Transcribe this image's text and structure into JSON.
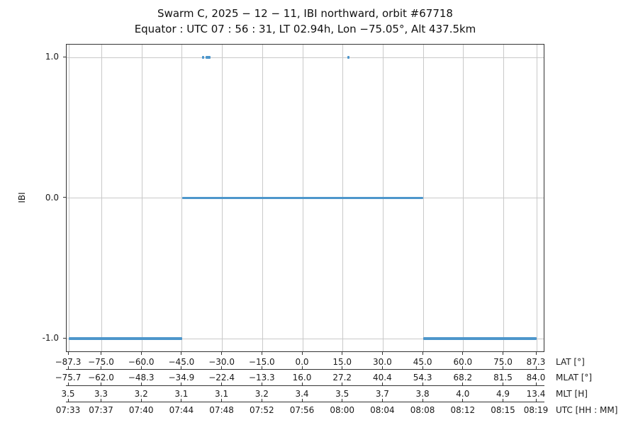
{
  "chart_data": {
    "type": "line",
    "title": "Swarm C,  2025 − 12 − 11,  IBI northward,  orbit #67718",
    "subtitle": "Equator :  UTC 07 : 56 : 31,  LT 02.94h,  Lon −75.05°,  Alt 437.5km",
    "ylabel": "IBI",
    "ylim": [
      -1.1,
      1.1
    ],
    "grid": true,
    "yticks": [
      {
        "value": 1.0,
        "label": "1.0"
      },
      {
        "value": 0.0,
        "label": "0.0"
      },
      {
        "value": -1.0,
        "label": "-1.0"
      }
    ],
    "x_tick_lats": [
      -87.3,
      -75.0,
      -60.0,
      -45.0,
      -30.0,
      -15.0,
      0.0,
      15.0,
      30.0,
      45.0,
      60.0,
      75.0,
      87.3
    ],
    "x_range_lat": [
      -87.3,
      87.3
    ],
    "axis_rows": [
      {
        "label": "LAT [°]",
        "values": [
          "−87.3",
          "−75.0",
          "−60.0",
          "−45.0",
          "−30.0",
          "−15.0",
          "0.0",
          "15.0",
          "30.0",
          "45.0",
          "60.0",
          "75.0",
          "87.3"
        ]
      },
      {
        "label": "MLAT [°]",
        "values": [
          "−75.7",
          "−62.0",
          "−48.3",
          "−34.9",
          "−22.4",
          "−13.3",
          "16.0",
          "27.2",
          "40.4",
          "54.3",
          "68.2",
          "81.5",
          "84.0"
        ]
      },
      {
        "label": "MLT [H]",
        "values": [
          "3.5",
          "3.3",
          "3.2",
          "3.1",
          "3.1",
          "3.2",
          "3.4",
          "3.5",
          "3.7",
          "3.8",
          "4.0",
          "4.9",
          "13.4"
        ]
      },
      {
        "label": "UTC [HH : MM]",
        "values": [
          "07:33",
          "07:37",
          "07:40",
          "07:44",
          "07:48",
          "07:52",
          "07:56",
          "08:00",
          "08:04",
          "08:08",
          "08:12",
          "08:15",
          "08:19"
        ]
      }
    ],
    "series": [
      {
        "name": "IBI",
        "color": "#4d96cb",
        "segments": [
          {
            "y": -1.0,
            "lat_from": -87.3,
            "lat_to": -45.0
          },
          {
            "y": 0.0,
            "lat_from": -45.0,
            "lat_to": 45.0
          },
          {
            "y": -1.0,
            "lat_from": 45.0,
            "lat_to": 87.3
          },
          {
            "y": 1.0,
            "lat_from": -37.6,
            "lat_to": -36.8
          },
          {
            "y": 1.0,
            "lat_from": -36.3,
            "lat_to": -34.4
          },
          {
            "y": 1.0,
            "lat_from": 16.6,
            "lat_to": 17.4
          }
        ]
      }
    ],
    "colors": {
      "line": "#4d96cb",
      "grid": "#c9c9c9",
      "spine": "#333333",
      "text": "#1a1a1a"
    }
  }
}
